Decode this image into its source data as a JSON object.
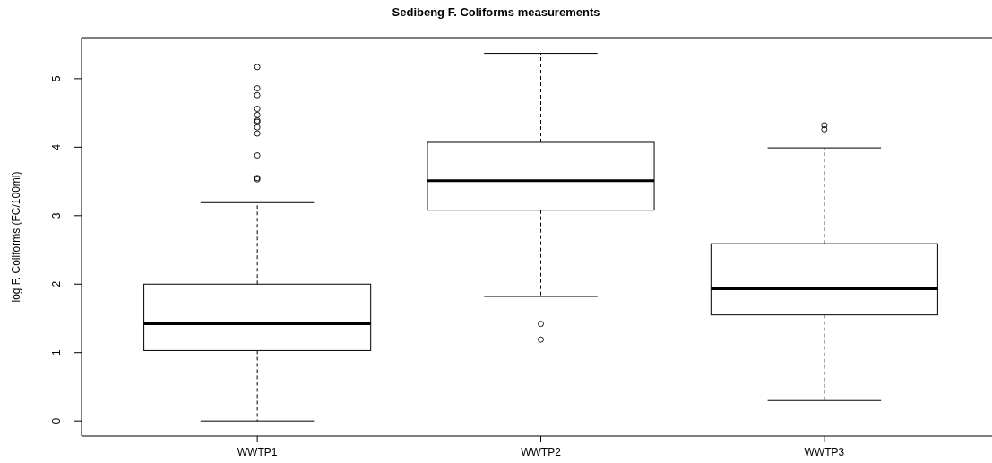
{
  "chart_data": {
    "type": "box",
    "title": "Sedibeng F. Coliforms measurements",
    "ylabel": "log F. Coliforms (FC/100ml)",
    "categories": [
      "WWTP1",
      "WWTP2",
      "WWTP3"
    ],
    "boxes": [
      {
        "low": 0,
        "q1": 1.03,
        "median": 1.42,
        "q3": 2.0,
        "high": 3.19,
        "outliers": [
          5.17,
          4.86,
          4.76,
          4.56,
          4.47,
          4.39,
          4.37,
          4.29,
          4.2,
          3.88,
          3.55,
          3.53
        ]
      },
      {
        "low": 1.82,
        "q1": 3.08,
        "median": 3.51,
        "q3": 4.07,
        "high": 5.37,
        "outliers": [
          1.42,
          1.19
        ]
      },
      {
        "low": 0.3,
        "q1": 1.55,
        "median": 1.93,
        "q3": 2.59,
        "high": 3.99,
        "outliers": [
          4.32,
          4.26
        ]
      }
    ],
    "ylim": [
      -0.22,
      5.6
    ],
    "yticks": [
      0,
      1,
      2,
      3,
      4,
      5
    ],
    "marker": "circle"
  }
}
